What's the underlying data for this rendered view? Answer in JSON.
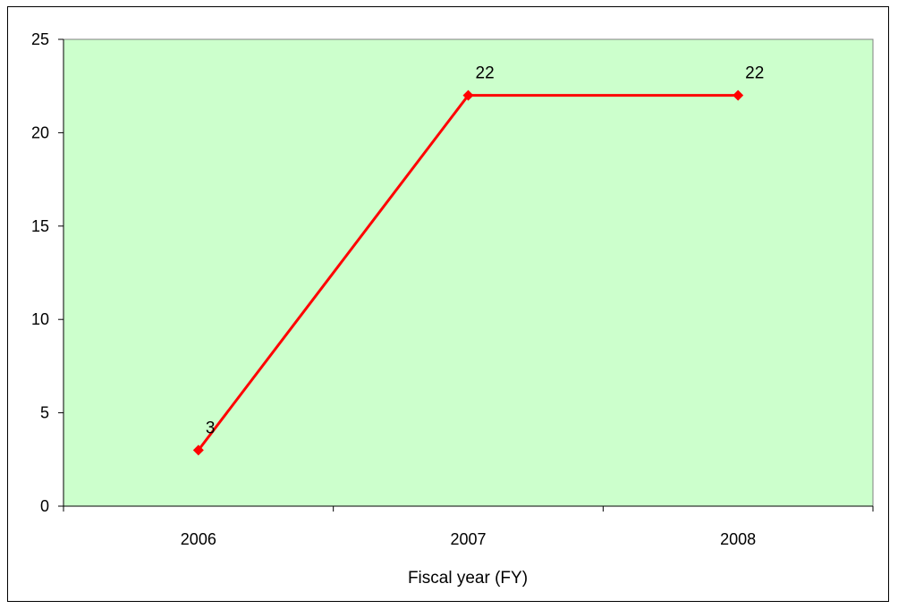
{
  "chart_data": {
    "type": "line",
    "title": "",
    "xlabel": "Fiscal year (FY)",
    "ylabel": "",
    "categories": [
      "2006",
      "2007",
      "2008"
    ],
    "series": [
      {
        "name": "",
        "values": [
          3,
          22,
          22
        ],
        "color": "#ff0000"
      }
    ],
    "ylim": [
      0,
      25
    ],
    "yticks": [
      0,
      5,
      10,
      15,
      20,
      25
    ],
    "grid": false,
    "legend": "none",
    "plot_background": "#ccffcc"
  }
}
